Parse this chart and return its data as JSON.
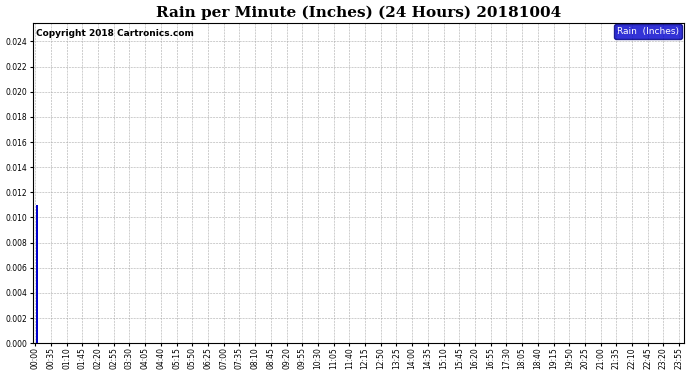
{
  "title": "Rain per Minute (Inches) (24 Hours) 20181004",
  "copyright_text": "Copyright 2018 Cartronics.com",
  "legend_label": "Rain  (Inches)",
  "ylim": [
    0.0,
    0.0255
  ],
  "yticks": [
    0.0,
    0.002,
    0.004,
    0.006,
    0.008,
    0.01,
    0.012,
    0.014,
    0.016,
    0.018,
    0.02,
    0.022,
    0.024
  ],
  "bar_color": "#0000cc",
  "background_color": "#ffffff",
  "plot_bg_color": "#ffffff",
  "grid_color": "#aaaaaa",
  "title_fontsize": 11,
  "tick_fontsize": 5.5,
  "copyright_fontsize": 6.5,
  "total_minutes": 1440,
  "rain_spikes": [
    {
      "minute": 2,
      "value": 0.011
    },
    {
      "minute": 3,
      "value": 0.011
    },
    {
      "minute": 4,
      "value": 0.0055
    },
    {
      "minute": 5,
      "value": 0.011
    },
    {
      "minute": 6,
      "value": 0.0015
    }
  ],
  "x_tick_interval": 35
}
